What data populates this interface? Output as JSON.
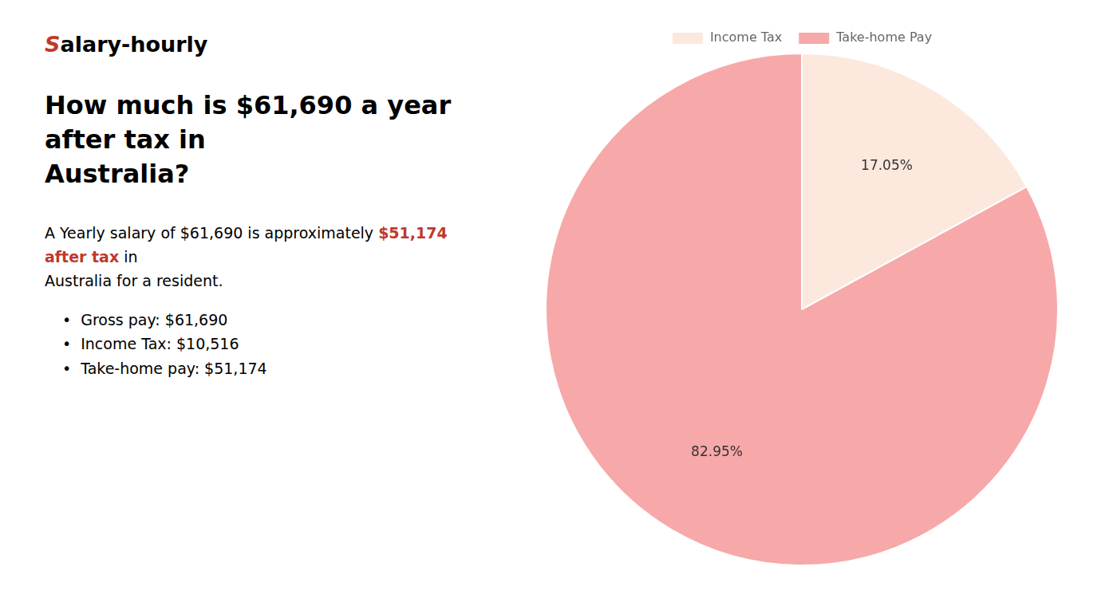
{
  "chart_data": {
    "type": "pie",
    "title": [
      "How much is $61,690 a year after tax in",
      "Australia?"
    ],
    "categories": [
      "Income Tax",
      "Take-home Pay"
    ],
    "values": [
      17.05,
      82.95
    ],
    "value_labels": [
      "17.05%",
      "82.95%"
    ],
    "colors": [
      "#fce8dd",
      "#f7a8a8"
    ],
    "data_labels": true,
    "legend": "top",
    "annotations": [
      [
        {
          "text": "S",
          "color": "#c0392b"
        },
        {
          "text": "alary-hourly"
        }
      ],
      [
        {
          "text": "A Yearly salary of $61,690 is approximately "
        },
        {
          "text": "$51,174 after tax",
          "color": "#c0392b"
        },
        {
          "text": " in"
        }
      ],
      [
        {
          "text": "Australia for a resident."
        }
      ],
      [
        {
          "text": "•"
        },
        {
          "text": "Gross pay: $61,690"
        }
      ],
      [
        {
          "text": "•"
        },
        {
          "text": "Income Tax: $10,516"
        }
      ],
      [
        {
          "text": "•"
        },
        {
          "text": "Take-home pay: $51,174"
        }
      ]
    ]
  }
}
